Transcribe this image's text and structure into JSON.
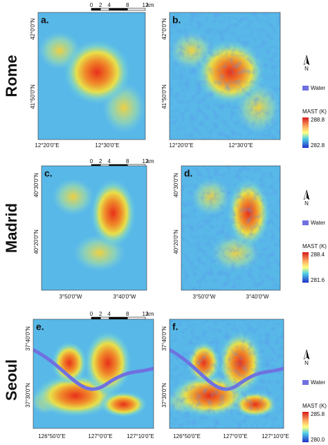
{
  "rows": [
    {
      "city": "Rome",
      "scale_bar": [
        "0",
        "2",
        "4",
        "8",
        "12",
        "km"
      ],
      "panels": [
        {
          "letter": "a.",
          "lat_labels": [
            "42°0'0\"N",
            "41°50'0\"N"
          ],
          "lon_labels": [
            "12°20'0\"E",
            "12°30'0\"E"
          ]
        },
        {
          "letter": "b.",
          "lat_labels": [
            "42°0'0\"N",
            "41°50'0\"N"
          ],
          "lon_labels": [
            "12°20'0\"E",
            "12°30'0\"E"
          ]
        }
      ],
      "legend": {
        "north": "N",
        "water": "Water",
        "title": "MAST (K)",
        "max": "288.8",
        "min": "282.8"
      }
    },
    {
      "city": "Madrid",
      "scale_bar": [
        "0",
        "2",
        "4",
        "8",
        "12",
        "km"
      ],
      "panels": [
        {
          "letter": "c.",
          "lat_labels": [
            "40°30'0\"N",
            "40°20'0\"N"
          ],
          "lon_labels": [
            "3°50'0\"W",
            "3°40'0\"W"
          ]
        },
        {
          "letter": "d.",
          "lat_labels": [
            "40°30'0\"N",
            "40°20'0\"N"
          ],
          "lon_labels": [
            "3°50'0\"W",
            "3°40'0\"W"
          ]
        }
      ],
      "legend": {
        "north": "N",
        "water": "Water",
        "title": "MAST (K)",
        "max": "288.4",
        "min": "281.6"
      }
    },
    {
      "city": "Seoul",
      "scale_bar": [
        "0",
        "2",
        "4",
        "8",
        "12",
        "km"
      ],
      "panels": [
        {
          "letter": "e.",
          "lat_labels": [
            "37°40'0\"N",
            "37°30'0\"N"
          ],
          "lon_labels": [
            "126°50'0\"E",
            "127°0'0\"E",
            "127°10'0\"E"
          ]
        },
        {
          "letter": "f.",
          "lat_labels": [
            "37°40'0\"N",
            "37°30'0\"N"
          ],
          "lon_labels": [
            "126°50'0\"E",
            "127°0'0\"E",
            "127°10'0\"E"
          ]
        }
      ],
      "legend": {
        "north": "N",
        "water": "Water",
        "title": "MAST (K)",
        "max": "285.8",
        "min": "280.0"
      }
    }
  ]
}
